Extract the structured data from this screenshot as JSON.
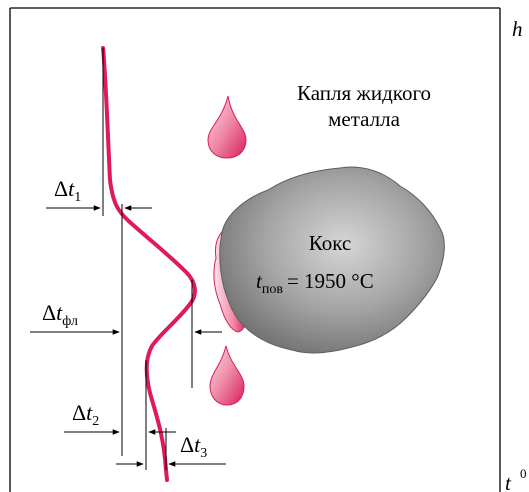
{
  "axis": {
    "h_label": "h",
    "t_label": "t",
    "t_superscript": "0"
  },
  "droplet_label": {
    "line1": "Капля жидкого",
    "line2": "металла"
  },
  "coke": {
    "title": "Кокс",
    "temp_var": "t",
    "temp_sub": "пов",
    "temp_value": "= 1950 °C"
  },
  "deltas": [
    {
      "sym": "Δ",
      "var": "t",
      "sub": "1"
    },
    {
      "sym": "Δ",
      "var": "t",
      "sub": "фл"
    },
    {
      "sym": "Δ",
      "var": "t",
      "sub": "2"
    },
    {
      "sym": "Δ",
      "var": "t",
      "sub": "3"
    }
  ],
  "colors": {
    "curve": "#e0195a",
    "droplet_fill": "#f2a0b4",
    "droplet_dark": "#d81e5b",
    "coke_fill": "#9a9a9a",
    "coke_dark": "#6f6f6f",
    "coke_light": "#d2d2d2"
  }
}
